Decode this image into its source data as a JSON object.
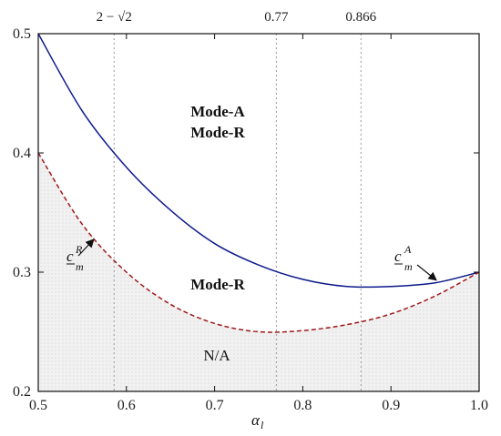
{
  "chart_data": {
    "type": "line",
    "xlabel": "α",
    "xlabel_sub": "l",
    "xlim": [
      0.5,
      1.0
    ],
    "ylim": [
      0.2,
      0.5
    ],
    "x_ticks": [
      "0.5",
      "0.6",
      "0.7",
      "0.8",
      "0.9",
      "1.0"
    ],
    "y_ticks": [
      "0.2",
      "0.3",
      "0.4",
      "0.5"
    ],
    "series": [
      {
        "key": "cmA",
        "color": "#0d1a8c",
        "style": "solid",
        "x": [
          0.5,
          0.55,
          0.6,
          0.65,
          0.7,
          0.75,
          0.8,
          0.85,
          0.9,
          0.95,
          1.0
        ],
        "y": [
          0.5,
          0.435,
          0.388,
          0.352,
          0.324,
          0.306,
          0.294,
          0.288,
          0.288,
          0.291,
          0.3
        ]
      },
      {
        "key": "cmR",
        "color": "#a01818",
        "style": "dashed",
        "x": [
          0.5,
          0.55,
          0.6,
          0.65,
          0.7,
          0.75,
          0.8,
          0.85,
          0.9,
          0.95,
          1.0
        ],
        "y": [
          0.4,
          0.34,
          0.3,
          0.273,
          0.257,
          0.25,
          0.251,
          0.256,
          0.265,
          0.28,
          0.3
        ]
      }
    ],
    "vlines": [
      {
        "x": 0.586,
        "label": "2 − √2"
      },
      {
        "x": 0.77,
        "label": "0.77"
      },
      {
        "x": 0.866,
        "label": "0.866"
      }
    ],
    "region_labels": {
      "upper_line1": "Mode-A",
      "upper_line2": "Mode-R",
      "middle": "Mode-R",
      "lower": "N/A"
    },
    "annotations": {
      "cmR": {
        "main": "c",
        "sub": "m",
        "sup": "R"
      },
      "cmA": {
        "main": "c",
        "sub": "m",
        "sup": "A"
      }
    },
    "grid": false,
    "shaded_region": "below dashed curve"
  }
}
